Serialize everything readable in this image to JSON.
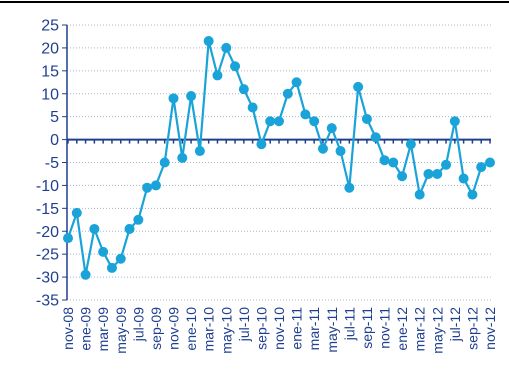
{
  "chart_data": {
    "type": "line",
    "title": "",
    "xlabel": "",
    "ylabel": "",
    "ylim": [
      -35,
      25
    ],
    "ytick_step": 5,
    "grid": "horizontal-dotted",
    "legend": "none",
    "colors": {
      "series": "#1aa3d8",
      "text": "#1f3f8f",
      "axis": "#1f3f8f",
      "grid": "#aab4c8",
      "frame": "#000000"
    },
    "x_tick_labels": [
      "nov-08",
      "ene-09",
      "mar-09",
      "may-09",
      "jul-09",
      "sep-09",
      "nov-09",
      "ene-10",
      "mar-10",
      "may-10",
      "jul-10",
      "sep-10",
      "nov-10",
      "ene-11",
      "mar-11",
      "may-11",
      "jul-11",
      "sep-11",
      "nov-11",
      "ene-12",
      "mar-12",
      "may-12",
      "jul-12",
      "sep-12",
      "nov-12"
    ],
    "x": [
      "nov-08",
      "dic-08",
      "ene-09",
      "feb-09",
      "mar-09",
      "abr-09",
      "may-09",
      "jun-09",
      "jul-09",
      "ago-09",
      "sep-09",
      "oct-09",
      "nov-09",
      "dic-09",
      "ene-10",
      "feb-10",
      "mar-10",
      "abr-10",
      "may-10",
      "jun-10",
      "jul-10",
      "ago-10",
      "sep-10",
      "oct-10",
      "nov-10",
      "dic-10",
      "ene-11",
      "feb-11",
      "mar-11",
      "abr-11",
      "may-11",
      "jun-11",
      "jul-11",
      "ago-11",
      "sep-11",
      "oct-11",
      "nov-11",
      "dic-11",
      "ene-12",
      "feb-12",
      "mar-12",
      "abr-12",
      "may-12",
      "jun-12",
      "jul-12",
      "ago-12",
      "sep-12",
      "oct-12",
      "nov-12"
    ],
    "series": [
      {
        "values": [
          -21.5,
          -16,
          -29.5,
          -19.5,
          -24.5,
          -28,
          -26,
          -19.5,
          -17.5,
          -10.5,
          -10,
          -5,
          9,
          -4,
          9.5,
          -2.5,
          21.5,
          14,
          20,
          16,
          11,
          7,
          -1,
          4,
          4,
          10,
          12.5,
          5.5,
          4,
          -2,
          2.5,
          -2.5,
          -10.5,
          11.5,
          4.5,
          0.5,
          -4.5,
          -5,
          -8,
          -1,
          -12,
          -7.5,
          -7.5,
          -5.5,
          4,
          -8.5,
          -12,
          -6,
          -5
        ]
      }
    ]
  }
}
